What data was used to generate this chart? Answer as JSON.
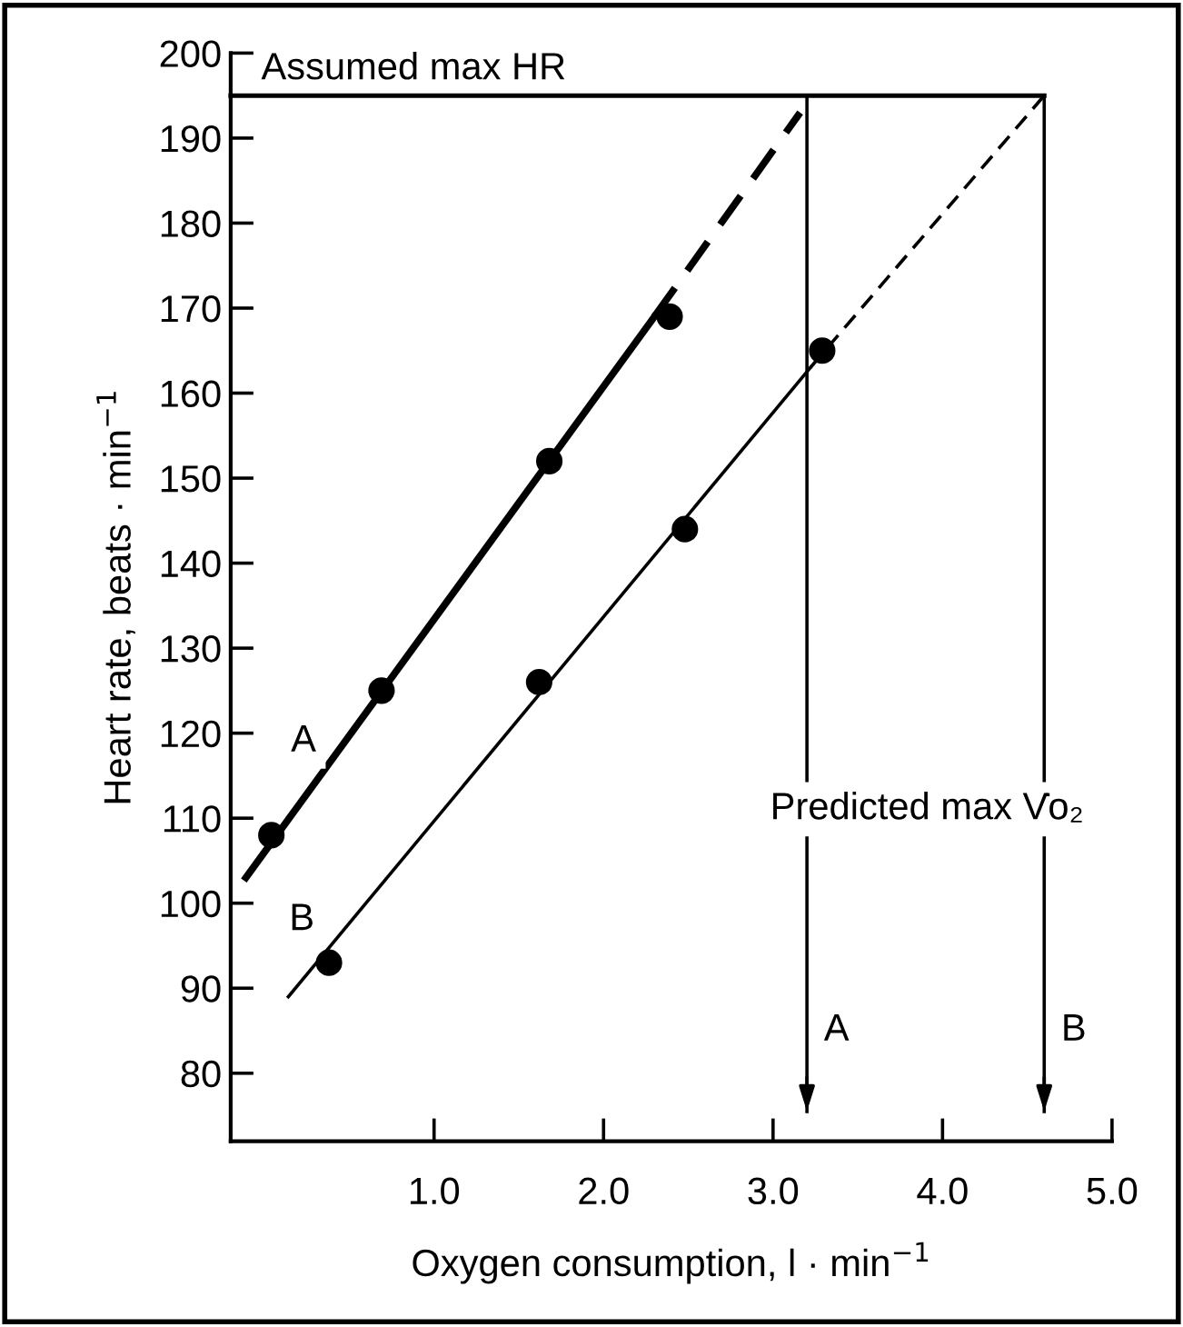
{
  "chart_data": {
    "type": "scatter",
    "xlabel": "Oxygen consumption, l · min$^{−1}$",
    "ylabel": "Heart rate, beats · min$^{−1}$",
    "xlim": [
      -0.2,
      5.0
    ],
    "ylim": [
      72,
      200
    ],
    "xticks": [
      {
        "value": 1,
        "label": "1.0"
      },
      {
        "value": 2,
        "label": "2.0"
      },
      {
        "value": 3,
        "label": "3.0"
      },
      {
        "value": 4,
        "label": "4.0"
      },
      {
        "value": 5,
        "label": "5.0"
      }
    ],
    "yticks": [
      80,
      90,
      100,
      110,
      120,
      130,
      140,
      150,
      160,
      170,
      180,
      190,
      200
    ],
    "grid": false,
    "series": [
      {
        "marker": "circle",
        "color": "#000000",
        "x": [
          0.04,
          0.69,
          1.68,
          2.39
        ],
        "values": [
          108,
          125,
          152,
          169
        ]
      },
      {
        "marker": "circle",
        "color": "#000000",
        "x": [
          0.38,
          1.62,
          2.48,
          3.29
        ],
        "values": [
          93,
          126,
          144,
          165
        ]
      },
      {
        "type": "line",
        "marker": "none",
        "line_style": "solid",
        "color": "#000000",
        "x": [
          -0.11,
          2.3
        ],
        "values": [
          103,
          169
        ]
      },
      {
        "type": "line",
        "marker": "none",
        "line_style": "dashed",
        "color": "#000000",
        "x": [
          2.3,
          3.16
        ],
        "values": [
          169,
          193
        ]
      },
      {
        "type": "line",
        "marker": "none",
        "line_style": "solid",
        "color": "#000000",
        "x": [
          0.14,
          3.22
        ],
        "values": [
          89,
          163
        ]
      },
      {
        "type": "line",
        "marker": "none",
        "line_style": "dashed",
        "color": "#000000",
        "x": [
          3.22,
          4.6
        ],
        "values": [
          163,
          195
        ]
      }
    ],
    "ref_lines": [
      {
        "axis": "y",
        "value": 195,
        "label": "Assumed max HR",
        "color": "#000000"
      },
      {
        "axis": "x",
        "value": 3.2,
        "label": "A",
        "color": "#000000"
      },
      {
        "axis": "x",
        "value": 4.6,
        "label": "B",
        "color": "#000000"
      }
    ],
    "annotations": [
      {
        "text": "A",
        "x": 0.23,
        "y": 119
      },
      {
        "text": "B",
        "x": 0.22,
        "y": 98
      },
      "Predicted max V̇o₂"
    ]
  }
}
